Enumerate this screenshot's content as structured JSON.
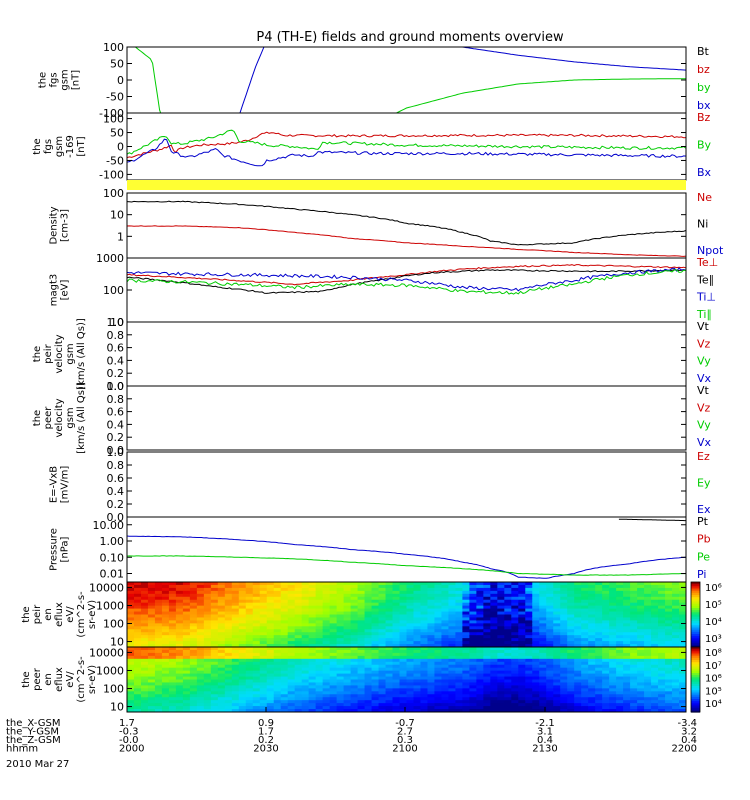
{
  "title": "P4 (TH-E) fields and ground moments overview",
  "colors": {
    "black": "#000000",
    "red": "#cc0000",
    "green": "#00cc00",
    "blue": "#0000cc",
    "yellow": "#ffff33"
  },
  "chart_data": [
    {
      "type": "line",
      "name": "fgs",
      "ylabel": [
        "the",
        "fgs",
        "gsm",
        "[nT]"
      ],
      "ylim": [
        -100,
        100
      ],
      "yticks": [
        "100",
        "50",
        "0",
        "-50",
        "-100"
      ],
      "ytick_values": [
        100,
        50,
        0,
        -50,
        -100
      ],
      "legend": [
        {
          "label": "Bt",
          "color": "#000000"
        },
        {
          "label": "bz",
          "color": "#cc0000"
        },
        {
          "label": "by",
          "color": "#00cc00"
        },
        {
          "label": "bx",
          "color": "#0000cc"
        }
      ],
      "series": [
        {
          "color": "#00cc00",
          "x": [
            0,
            0.045,
            0.06,
            0.47,
            0.5,
            0.6,
            0.7,
            0.8,
            0.9,
            1.0
          ],
          "y": [
            120,
            60,
            -110,
            -110,
            -85,
            -40,
            -12,
            0,
            3,
            4
          ]
        },
        {
          "color": "#0000cc",
          "x": [
            0.2,
            0.23,
            0.25,
            0.55,
            0.6,
            0.7,
            0.8,
            0.9,
            1.0
          ],
          "y": [
            -110,
            40,
            120,
            120,
            100,
            75,
            55,
            40,
            30
          ]
        }
      ]
    },
    {
      "type": "line",
      "name": "fgs-169",
      "ylabel": [
        "the",
        "fgs",
        "gsm",
        "-169",
        "[nT]"
      ],
      "ylim": [
        -120,
        120
      ],
      "yticks": [
        "100",
        "50",
        "0",
        "-50",
        "-100"
      ],
      "ytick_values": [
        100,
        50,
        0,
        -50,
        -100
      ],
      "legend": [
        {
          "label": "Bz",
          "color": "#cc0000"
        },
        {
          "label": "By",
          "color": "#00cc00"
        },
        {
          "label": "Bx",
          "color": "#0000cc"
        }
      ],
      "series": [
        {
          "color": "#cc0000",
          "noise": 4,
          "x": [
            0,
            0.06,
            0.08,
            0.085,
            0.1,
            0.13,
            0.18,
            0.2,
            0.22,
            0.24,
            0.26,
            0.28,
            0.4,
            0.6,
            0.8,
            1.0
          ],
          "y": [
            -40,
            -10,
            5,
            -20,
            -5,
            5,
            10,
            15,
            25,
            45,
            50,
            40,
            38,
            40,
            40,
            35
          ]
        },
        {
          "color": "#00cc00",
          "noise": 5,
          "x": [
            0,
            0.05,
            0.07,
            0.08,
            0.1,
            0.15,
            0.19,
            0.2,
            0.24,
            0.25,
            0.3,
            0.34,
            0.35,
            0.5,
            0.7,
            0.9,
            1.0
          ],
          "y": [
            -30,
            20,
            40,
            10,
            10,
            30,
            60,
            20,
            10,
            5,
            0,
            -10,
            15,
            5,
            0,
            -5,
            -5
          ]
        },
        {
          "color": "#0000cc",
          "noise": 5,
          "x": [
            0,
            0.05,
            0.07,
            0.08,
            0.11,
            0.16,
            0.17,
            0.2,
            0.24,
            0.25,
            0.3,
            0.33,
            0.34,
            0.45,
            0.6,
            0.8,
            1.0
          ],
          "y": [
            -60,
            -10,
            30,
            -20,
            -40,
            -10,
            -30,
            -50,
            -70,
            -50,
            -30,
            -35,
            -20,
            -25,
            -25,
            -30,
            -35
          ]
        }
      ]
    },
    {
      "type": "flag-bar",
      "name": "state-flag",
      "color": "#ffff33"
    },
    {
      "type": "line",
      "name": "density",
      "scale": "log",
      "ylabel": [
        "Density",
        "[cm-3]"
      ],
      "ylim": [
        0.1,
        100
      ],
      "yticks": [
        "100",
        "10",
        "1"
      ],
      "ytick_values": [
        100,
        10,
        1
      ],
      "legend": [
        {
          "label": "Ne",
          "color": "#cc0000"
        },
        {
          "label": "Ni",
          "color": "#000000"
        },
        {
          "label": "Npot",
          "color": "#0000cc"
        }
      ],
      "series": [
        {
          "color": "#000000",
          "noise": 0.02,
          "x": [
            0,
            0.1,
            0.2,
            0.3,
            0.4,
            0.5,
            0.6,
            0.65,
            0.7,
            0.8,
            0.9,
            1.0
          ],
          "y": [
            40,
            40,
            30,
            18,
            10,
            4,
            1.5,
            0.6,
            0.4,
            0.5,
            1.2,
            1.8
          ]
        },
        {
          "color": "#cc0000",
          "noise": 0.01,
          "x": [
            0,
            0.1,
            0.2,
            0.3,
            0.4,
            0.5,
            0.6,
            0.7,
            0.8,
            0.9,
            1.0
          ],
          "y": [
            3,
            3,
            2.5,
            1.5,
            0.8,
            0.5,
            0.35,
            0.25,
            0.18,
            0.14,
            0.12
          ]
        }
      ]
    },
    {
      "type": "line",
      "name": "temperature",
      "scale": "log",
      "ylabel": [
        "magt3",
        "[eV]"
      ],
      "ylim": [
        10,
        1000
      ],
      "yticks": [
        "1000",
        "100",
        "10"
      ],
      "ytick_values": [
        1000,
        100,
        10
      ],
      "legend": [
        {
          "label": "Te⊥",
          "color": "#cc0000"
        },
        {
          "label": "Te∥",
          "color": "#000000"
        },
        {
          "label": "Ti⊥",
          "color": "#0000cc"
        },
        {
          "label": "Ti∥",
          "color": "#00cc00"
        }
      ],
      "series": [
        {
          "color": "#cc0000",
          "noise": 0.02,
          "x": [
            0,
            0.15,
            0.3,
            0.4,
            0.5,
            0.6,
            0.7,
            0.8,
            0.9,
            1.0
          ],
          "y": [
            300,
            220,
            150,
            200,
            300,
            450,
            550,
            600,
            550,
            500
          ]
        },
        {
          "color": "#000000",
          "noise": 0.02,
          "x": [
            0,
            0.15,
            0.25,
            0.35,
            0.45,
            0.55,
            0.65,
            0.75,
            0.85,
            1.0
          ],
          "y": [
            250,
            130,
            80,
            90,
            200,
            350,
            420,
            400,
            380,
            420
          ]
        },
        {
          "color": "#0000cc",
          "noise": 0.05,
          "x": [
            0,
            0.1,
            0.2,
            0.3,
            0.4,
            0.5,
            0.6,
            0.7,
            0.8,
            0.9,
            1.0
          ],
          "y": [
            350,
            320,
            300,
            280,
            250,
            200,
            120,
            100,
            200,
            350,
            450
          ]
        },
        {
          "color": "#00cc00",
          "noise": 0.05,
          "x": [
            0,
            0.1,
            0.2,
            0.3,
            0.4,
            0.5,
            0.6,
            0.7,
            0.8,
            0.9,
            1.0
          ],
          "y": [
            200,
            180,
            150,
            120,
            150,
            140,
            90,
            80,
            150,
            300,
            400
          ]
        }
      ]
    },
    {
      "type": "line",
      "name": "peir-velocity",
      "ylabel": [
        "the",
        "peir",
        "velocity",
        "gsm",
        "[km/s (All Qs)]"
      ],
      "ylim": [
        0,
        1
      ],
      "yticks": [
        "1.0",
        "0.8",
        "0.6",
        "0.4",
        "0.2",
        "0.0"
      ],
      "ytick_values": [
        1,
        0.8,
        0.6,
        0.4,
        0.2,
        0
      ],
      "legend": [
        {
          "label": "Vt",
          "color": "#000000"
        },
        {
          "label": "Vz",
          "color": "#cc0000"
        },
        {
          "label": "Vy",
          "color": "#00cc00"
        },
        {
          "label": "Vx",
          "color": "#0000cc"
        }
      ],
      "series": []
    },
    {
      "type": "line",
      "name": "peer-velocity",
      "ylabel": [
        "the",
        "peer",
        "velocity",
        "gsm",
        "[km/s (All Qs)]"
      ],
      "ylim": [
        0,
        1
      ],
      "yticks": [
        "1.0",
        "0.8",
        "0.6",
        "0.4",
        "0.2",
        "0.0"
      ],
      "ytick_values": [
        1,
        0.8,
        0.6,
        0.4,
        0.2,
        0
      ],
      "legend": [
        {
          "label": "Vt",
          "color": "#000000"
        },
        {
          "label": "Vz",
          "color": "#cc0000"
        },
        {
          "label": "Vy",
          "color": "#00cc00"
        },
        {
          "label": "Vx",
          "color": "#0000cc"
        }
      ],
      "series": []
    },
    {
      "type": "line",
      "name": "efield",
      "ylabel": [
        "E=-VxB",
        "[mV/m]"
      ],
      "ylim": [
        0,
        1
      ],
      "yticks": [
        "1.0",
        "0.8",
        "0.6",
        "0.4",
        "0.2",
        "0.0"
      ],
      "ytick_values": [
        1,
        0.8,
        0.6,
        0.4,
        0.2,
        0
      ],
      "legend": [
        {
          "label": "Ez",
          "color": "#cc0000"
        },
        {
          "label": "Ey",
          "color": "#00cc00"
        },
        {
          "label": "Ex",
          "color": "#0000cc"
        }
      ],
      "series": []
    },
    {
      "type": "line",
      "name": "pressure",
      "scale": "log",
      "ylabel": [
        "Pressure",
        "[nPa]"
      ],
      "ylim": [
        0.003,
        30
      ],
      "yticks": [
        "10.00",
        "1.00",
        "0.10",
        "0.01"
      ],
      "ytick_values": [
        10,
        1,
        0.1,
        0.01
      ],
      "legend": [
        {
          "label": "Pt",
          "color": "#000000"
        },
        {
          "label": "Pb",
          "color": "#cc0000"
        },
        {
          "label": "Pe",
          "color": "#00cc00"
        },
        {
          "label": "Pi",
          "color": "#0000cc"
        }
      ],
      "series": [
        {
          "color": "#0000cc",
          "noise": 0.01,
          "x": [
            0,
            0.1,
            0.2,
            0.3,
            0.4,
            0.5,
            0.6,
            0.65,
            0.7,
            0.75,
            0.8,
            0.9,
            1.0
          ],
          "y": [
            2,
            1.8,
            1.2,
            0.6,
            0.3,
            0.15,
            0.05,
            0.02,
            0.006,
            0.005,
            0.01,
            0.04,
            0.1
          ]
        },
        {
          "color": "#00cc00",
          "noise": 0.01,
          "x": [
            0,
            0.1,
            0.2,
            0.3,
            0.4,
            0.5,
            0.6,
            0.7,
            0.8,
            0.9,
            1.0
          ],
          "y": [
            0.12,
            0.12,
            0.1,
            0.08,
            0.05,
            0.03,
            0.02,
            0.01,
            0.008,
            0.008,
            0.01
          ]
        },
        {
          "color": "#000000",
          "x": [
            0.88,
            0.94,
            1.0
          ],
          "y": [
            22,
            20,
            18
          ]
        }
      ]
    },
    {
      "type": "heatmap",
      "name": "peir-spectrogram",
      "scale": "log",
      "ylabel": [
        "the",
        "peir",
        "en",
        "eflux",
        "eV/",
        "(cm^2-s-",
        "sr-eV)"
      ],
      "ylim": [
        5,
        20000
      ],
      "yticks": [
        "10000",
        "1000",
        "100",
        "10"
      ],
      "ytick_values": [
        10000,
        1000,
        100,
        10
      ],
      "colorbar": [
        "10⁶",
        "10⁵",
        "10⁴",
        "10³"
      ],
      "profile": {
        "x": [
          0,
          0.1,
          0.2,
          0.3,
          0.4,
          0.5,
          0.6,
          0.65,
          0.7,
          0.75,
          0.8,
          0.9,
          1.0
        ],
        "v": [
          0.97,
          0.95,
          0.85,
          0.75,
          0.65,
          0.5,
          0.4,
          0.25,
          0.3,
          0.4,
          0.5,
          0.55,
          0.6
        ]
      }
    },
    {
      "type": "heatmap",
      "name": "peer-spectrogram",
      "scale": "log",
      "ylabel": [
        "the",
        "peer",
        "en",
        "eflux",
        "eV/",
        "(cm^2-s-",
        "sr-eV)"
      ],
      "ylim": [
        5,
        20000
      ],
      "yticks": [
        "10000",
        "1000",
        "100",
        "10"
      ],
      "ytick_values": [
        10000,
        1000,
        100,
        10
      ],
      "colorbar": [
        "10⁸",
        "10⁷",
        "10⁶",
        "10⁵",
        "10⁴"
      ],
      "profile": {
        "x": [
          0,
          0.1,
          0.2,
          0.3,
          0.4,
          0.5,
          0.6,
          0.65,
          0.7,
          0.75,
          0.8,
          0.9,
          1.0
        ],
        "v": [
          0.7,
          0.65,
          0.55,
          0.45,
          0.38,
          0.32,
          0.28,
          0.22,
          0.2,
          0.25,
          0.32,
          0.4,
          0.45
        ]
      }
    }
  ],
  "x_axis": {
    "rows": [
      {
        "label": "the_X-GSM",
        "values": [
          "1.7",
          "0.9",
          "-0.7",
          "-2.1",
          "-3.4"
        ]
      },
      {
        "label": "the_Y-GSM",
        "values": [
          "-0.3",
          "1.7",
          "2.7",
          "3.1",
          "3.2"
        ]
      },
      {
        "label": "the_Z-GSM",
        "values": [
          "-0.0",
          "0.2",
          "0.3",
          "0.4",
          "0.4"
        ]
      },
      {
        "label": "hhmm",
        "values": [
          "2000",
          "2030",
          "2100",
          "2130",
          "2200"
        ]
      }
    ],
    "date": "2010 Mar 27"
  }
}
